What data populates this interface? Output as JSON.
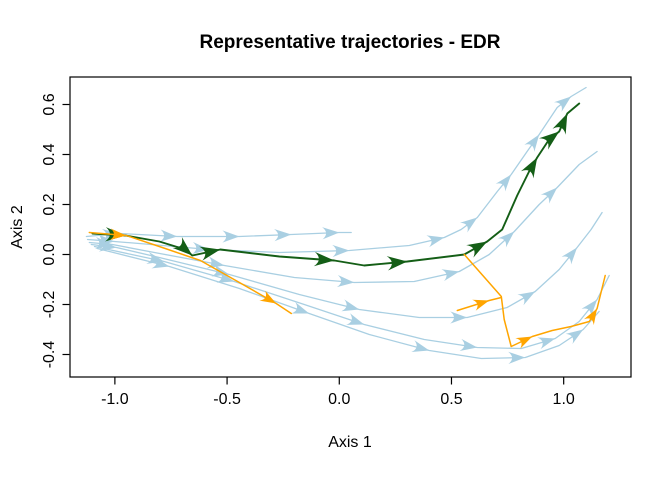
{
  "title": "Representative trajectories - EDR",
  "axes": {
    "xlabel": "Axis 1",
    "ylabel": "Axis 2",
    "xlim": [
      -1.2,
      1.3
    ],
    "ylim": [
      -0.49,
      0.71
    ],
    "x_ticks": [
      {
        "v": -1.0,
        "label": "-1.0"
      },
      {
        "v": -0.5,
        "label": "-0.5"
      },
      {
        "v": 0.0,
        "label": "0.0"
      },
      {
        "v": 0.5,
        "label": "0.5"
      },
      {
        "v": 1.0,
        "label": "1.0"
      }
    ],
    "y_ticks": [
      {
        "v": -0.4,
        "label": "-0.4"
      },
      {
        "v": -0.2,
        "label": "-0.2"
      },
      {
        "v": 0.0,
        "label": "0.0"
      },
      {
        "v": 0.2,
        "label": "0.2"
      },
      {
        "v": 0.4,
        "label": "0.4"
      },
      {
        "v": 0.6,
        "label": "0.6"
      }
    ],
    "grid": false,
    "box": true
  },
  "colors": {
    "background_trajectory": "#A9CFE2",
    "highlight_green": "#145E16",
    "highlight_orange": "#FFA500",
    "axis": "#000000",
    "background": "#FFFFFF"
  },
  "chart_data": {
    "type": "line",
    "title": "Representative trajectories - EDR",
    "xlabel": "Axis 1",
    "ylabel": "Axis 2",
    "xlim": [
      -1.2,
      1.3
    ],
    "ylim": [
      -0.49,
      0.71
    ],
    "legend": "none",
    "description": "Bundle of trajectories starting near (-1.1, 0.08) fanning right; most curve down toward (0.5, -0.4) then rise to the upper right near (1.1, 0.65). One dark-green representative trajectory and orange representative segments are highlighted with swept arrowheads.",
    "series": [
      {
        "name": "trajectory-blue-1",
        "color_key": "background_trajectory",
        "width": 1.3,
        "arrow_size": 17,
        "points": [
          [
            -1.127,
            0.072
          ],
          [
            -0.98,
            0.084
          ],
          [
            -0.722,
            0.072
          ],
          [
            -0.445,
            0.072
          ],
          [
            -0.214,
            0.08
          ],
          [
            0.0,
            0.088
          ],
          [
            0.053,
            0.088
          ]
        ],
        "arrows": [
          1,
          2,
          3,
          4,
          5
        ]
      },
      {
        "name": "trajectory-blue-2",
        "color_key": "background_trajectory",
        "width": 1.3,
        "arrow_size": 17,
        "points": [
          [
            -1.122,
            0.06
          ],
          [
            -1.002,
            0.052
          ],
          [
            -0.891,
            0.044
          ],
          [
            -0.579,
            0.02
          ],
          [
            -0.267,
            0.008
          ],
          [
            0.045,
            0.016
          ],
          [
            0.312,
            0.036
          ],
          [
            0.468,
            0.068
          ],
          [
            0.543,
            0.1
          ],
          [
            0.615,
            0.148
          ],
          [
            0.704,
            0.252
          ],
          [
            0.766,
            0.32
          ],
          [
            0.837,
            0.412
          ],
          [
            0.891,
            0.48
          ],
          [
            0.971,
            0.588
          ],
          [
            1.033,
            0.632
          ],
          [
            1.1,
            0.668
          ]
        ],
        "arrows": [
          1,
          3,
          5,
          7,
          9,
          11,
          13,
          15
        ]
      },
      {
        "name": "trajectory-blue-3",
        "color_key": "background_trajectory",
        "width": 1.3,
        "arrow_size": 17,
        "points": [
          [
            -1.114,
            0.048
          ],
          [
            -1.011,
            0.04
          ],
          [
            -0.824,
            0.008
          ],
          [
            -0.512,
            -0.044
          ],
          [
            -0.2,
            -0.092
          ],
          [
            0.067,
            -0.112
          ],
          [
            0.334,
            -0.108
          ],
          [
            0.535,
            -0.068
          ],
          [
            0.668,
            0.0
          ],
          [
            0.78,
            0.092
          ],
          [
            0.891,
            0.2
          ],
          [
            0.971,
            0.268
          ],
          [
            1.069,
            0.36
          ],
          [
            1.149,
            0.412
          ]
        ],
        "arrows": [
          1,
          3,
          5,
          7,
          9,
          11
        ]
      },
      {
        "name": "trajectory-blue-4",
        "color_key": "background_trajectory",
        "width": 1.3,
        "arrow_size": 17,
        "points": [
          [
            -1.105,
            0.04
          ],
          [
            -0.993,
            0.028
          ],
          [
            -0.802,
            -0.012
          ],
          [
            -0.49,
            -0.08
          ],
          [
            -0.178,
            -0.16
          ],
          [
            0.089,
            -0.22
          ],
          [
            0.356,
            -0.252
          ],
          [
            0.57,
            -0.252
          ],
          [
            0.748,
            -0.212
          ],
          [
            0.873,
            -0.148
          ],
          [
            0.98,
            -0.06
          ],
          [
            1.06,
            0.028
          ],
          [
            1.122,
            0.1
          ],
          [
            1.171,
            0.168
          ]
        ],
        "arrows": [
          1,
          3,
          5,
          7,
          9,
          11
        ]
      },
      {
        "name": "trajectory-blue-5",
        "color_key": "background_trajectory",
        "width": 1.3,
        "arrow_size": 17,
        "points": [
          [
            -1.091,
            0.032
          ],
          [
            -0.78,
            -0.028
          ],
          [
            -0.468,
            -0.108
          ],
          [
            -0.156,
            -0.2
          ],
          [
            0.111,
            -0.28
          ],
          [
            0.379,
            -0.34
          ],
          [
            0.615,
            -0.372
          ],
          [
            0.811,
            -0.376
          ],
          [
            0.962,
            -0.336
          ],
          [
            1.069,
            -0.268
          ],
          [
            1.149,
            -0.18
          ],
          [
            1.203,
            -0.084
          ]
        ],
        "arrows": [
          1,
          2,
          4,
          6,
          8,
          10
        ]
      },
      {
        "name": "trajectory-blue-6",
        "color_key": "background_trajectory",
        "width": 1.3,
        "arrow_size": 17,
        "points": [
          [
            -1.078,
            0.024
          ],
          [
            -0.757,
            -0.048
          ],
          [
            -0.445,
            -0.136
          ],
          [
            -0.134,
            -0.236
          ],
          [
            0.134,
            -0.32
          ],
          [
            0.401,
            -0.384
          ],
          [
            0.633,
            -0.416
          ],
          [
            0.829,
            -0.412
          ],
          [
            0.98,
            -0.364
          ],
          [
            1.087,
            -0.3
          ],
          [
            1.158,
            -0.228
          ]
        ],
        "arrows": [
          1,
          3,
          5,
          7,
          9
        ]
      },
      {
        "name": "representative-green",
        "color_key": "highlight_green",
        "width": 1.9,
        "arrow_size": 20,
        "points": [
          [
            -1.1,
            0.084
          ],
          [
            -0.953,
            0.076
          ],
          [
            -0.802,
            0.052
          ],
          [
            -0.686,
            0.02
          ],
          [
            -0.655,
            -0.004
          ],
          [
            -0.53,
            0.02
          ],
          [
            -0.267,
            -0.008
          ],
          [
            -0.022,
            -0.024
          ],
          [
            0.111,
            -0.044
          ],
          [
            0.303,
            -0.028
          ],
          [
            0.557,
            0.0
          ],
          [
            0.659,
            0.052
          ],
          [
            0.726,
            0.1
          ],
          [
            0.793,
            0.236
          ],
          [
            0.846,
            0.332
          ],
          [
            0.882,
            0.388
          ],
          [
            0.935,
            0.46
          ],
          [
            0.98,
            0.492
          ],
          [
            1.016,
            0.564
          ],
          [
            1.069,
            0.604
          ]
        ],
        "arrows": [
          1,
          4,
          5,
          7,
          9,
          11,
          15,
          17,
          18
        ]
      },
      {
        "name": "representative-orange-a",
        "color_key": "highlight_orange",
        "width": 1.5,
        "arrow_size": 16,
        "points": [
          [
            -1.114,
            0.088
          ],
          [
            -0.949,
            0.076
          ],
          [
            -0.802,
            0.032
          ],
          [
            -0.619,
            -0.024
          ],
          [
            -0.445,
            -0.112
          ],
          [
            -0.281,
            -0.196
          ],
          [
            -0.214,
            -0.236
          ]
        ],
        "arrows": [
          1,
          5
        ]
      },
      {
        "name": "representative-orange-b",
        "color_key": "highlight_orange",
        "width": 1.5,
        "arrow_size": 16,
        "points": [
          [
            0.557,
            0.0
          ],
          [
            0.722,
            -0.168
          ],
          [
            0.735,
            -0.26
          ],
          [
            0.766,
            -0.368
          ],
          [
            0.86,
            -0.328
          ],
          [
            0.949,
            -0.304
          ],
          [
            1.033,
            -0.288
          ],
          [
            1.114,
            -0.268
          ],
          [
            1.149,
            -0.216
          ],
          [
            1.185,
            -0.084
          ]
        ],
        "arrows": [
          4,
          8
        ]
      },
      {
        "name": "representative-orange-c",
        "color_key": "highlight_orange",
        "width": 1.5,
        "arrow_size": 16,
        "points": [
          [
            0.526,
            -0.224
          ],
          [
            0.668,
            -0.184
          ],
          [
            0.722,
            -0.172
          ]
        ],
        "arrows": [
          1
        ]
      }
    ]
  }
}
